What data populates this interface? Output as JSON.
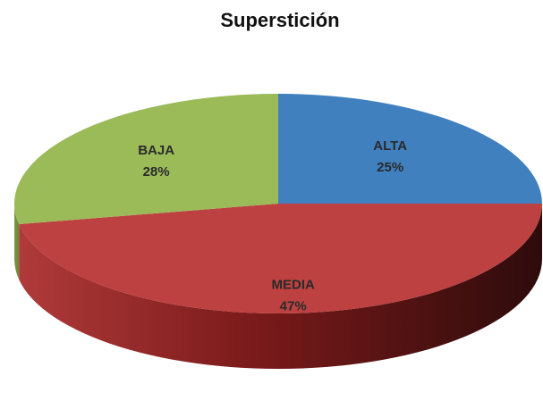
{
  "chart_data": {
    "type": "pie",
    "title": "Superstición",
    "categories": [
      "ALTA",
      "MEDIA",
      "BAJA"
    ],
    "values": [
      25,
      47,
      28
    ],
    "value_labels": [
      "25%",
      "47%",
      "28%"
    ],
    "colors": [
      "#4080bf",
      "#be4141",
      "#9bbb59"
    ]
  }
}
